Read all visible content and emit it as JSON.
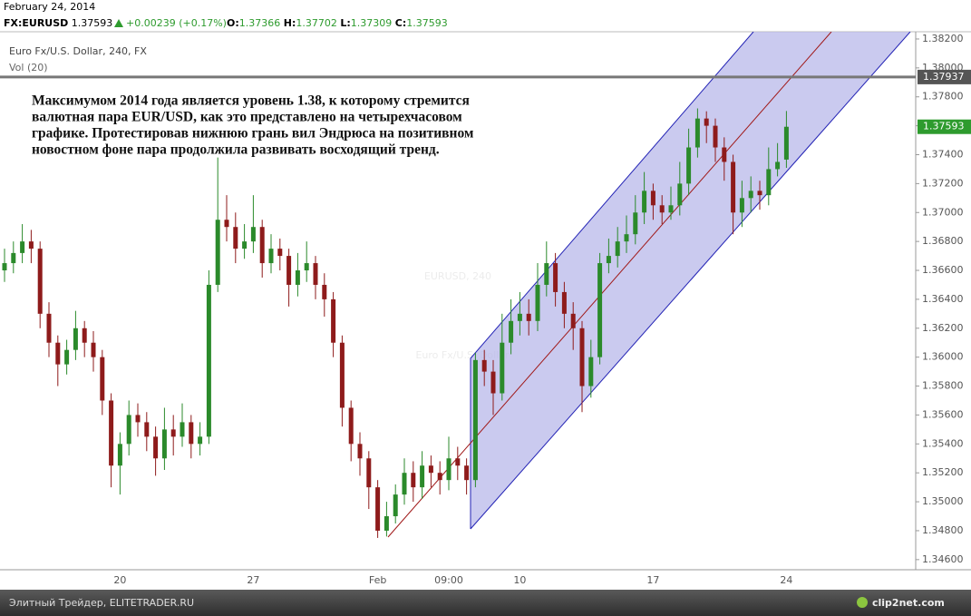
{
  "header": {
    "date": "February 24, 2014",
    "symbol": "FX:EURUSD",
    "last": "1.37593",
    "change": "+0.00239 (+0.17%)",
    "ohlc": [
      {
        "key": "O:",
        "text": "1.37366"
      },
      {
        "key": "H:",
        "text": "1.37702"
      },
      {
        "key": "L:",
        "text": "1.37309"
      },
      {
        "key": "C:",
        "text": "1.37593"
      }
    ]
  },
  "chart_data": {
    "type": "candlestick",
    "title": "Euro Fx/U.S. Dollar, 240, FX",
    "subtitle": "Vol (20)",
    "watermark": [
      "EURUSD, 240",
      "Euro Fx/U.S. Dollar"
    ],
    "annotation": [
      "Максимумом 2014 года является уровень 1.38, к которому стремится",
      "валютная пара EUR/USD, как это представлено на четырехчасовом",
      "графике. Протестировав нижнюю грань вил Эндрюса на позитивном",
      "новостном фоне пара продолжила развивать восходящий тренд."
    ],
    "up_color": "#2b8a2b",
    "down_color": "#8e1b1b",
    "ylim": [
      1.3453,
      1.3825
    ],
    "yticks": [
      {
        "value": 1.382,
        "label": "1.38200"
      },
      {
        "value": 1.38,
        "label": "1.38000"
      },
      {
        "value": 1.378,
        "label": "1.37800"
      },
      {
        "value": 1.376,
        "label": "1.37600"
      },
      {
        "value": 1.374,
        "label": "1.37400"
      },
      {
        "value": 1.372,
        "label": "1.37200"
      },
      {
        "value": 1.37,
        "label": "1.37000"
      },
      {
        "value": 1.368,
        "label": "1.36800"
      },
      {
        "value": 1.366,
        "label": "1.36600"
      },
      {
        "value": 1.364,
        "label": "1.36400"
      },
      {
        "value": 1.362,
        "label": "1.36200"
      },
      {
        "value": 1.36,
        "label": "1.36000"
      },
      {
        "value": 1.358,
        "label": "1.35800"
      },
      {
        "value": 1.356,
        "label": "1.35600"
      },
      {
        "value": 1.354,
        "label": "1.35400"
      },
      {
        "value": 1.352,
        "label": "1.35200"
      },
      {
        "value": 1.35,
        "label": "1.35000"
      },
      {
        "value": 1.348,
        "label": "1.34800"
      },
      {
        "value": 1.346,
        "label": "1.34600"
      }
    ],
    "price_line": {
      "value": 1.37937,
      "label": "1.37937",
      "color": "#777777"
    },
    "last_price": {
      "value": 1.37593,
      "label": "1.37593",
      "color": "#2e9b2e"
    },
    "categories": [
      null,
      null,
      null,
      null,
      null,
      null,
      null,
      null,
      null,
      null,
      null,
      null,
      null,
      "20",
      null,
      null,
      null,
      null,
      null,
      null,
      null,
      null,
      null,
      null,
      null,
      null,
      null,
      null,
      "27",
      null,
      null,
      null,
      null,
      null,
      null,
      null,
      null,
      null,
      null,
      null,
      null,
      null,
      "Feb",
      null,
      null,
      null,
      null,
      null,
      null,
      null,
      "09:00",
      null,
      null,
      null,
      null,
      null,
      null,
      null,
      "10",
      null,
      null,
      null,
      null,
      null,
      null,
      null,
      null,
      null,
      null,
      null,
      null,
      null,
      null,
      "17",
      null,
      null,
      null,
      null,
      null,
      null,
      null,
      null,
      null,
      null,
      null,
      null,
      null,
      null,
      "24"
    ],
    "open": [
      1.366,
      1.3665,
      1.3672,
      1.368,
      1.3675,
      1.363,
      1.361,
      1.3595,
      1.3605,
      1.362,
      1.361,
      1.36,
      1.357,
      1.3525,
      1.354,
      1.356,
      1.3555,
      1.3545,
      1.353,
      1.355,
      1.3545,
      1.3555,
      1.354,
      1.3545,
      1.365,
      1.3695,
      1.369,
      1.3675,
      1.368,
      1.369,
      1.3665,
      1.3675,
      1.367,
      1.365,
      1.366,
      1.3665,
      1.365,
      1.364,
      1.361,
      1.3565,
      1.354,
      1.353,
      1.351,
      1.348,
      1.349,
      1.3505,
      1.352,
      1.351,
      1.3525,
      1.352,
      1.3515,
      1.353,
      1.3525,
      1.3515,
      1.3598,
      1.359,
      1.3575,
      1.361,
      1.3625,
      1.363,
      1.3625,
      1.365,
      1.3665,
      1.3645,
      1.363,
      1.362,
      1.358,
      1.36,
      1.3665,
      1.367,
      1.368,
      1.3685,
      1.37,
      1.3715,
      1.3705,
      1.37,
      1.3705,
      1.372,
      1.3745,
      1.3765,
      1.376,
      1.3745,
      1.3735,
      1.37,
      1.371,
      1.3715,
      1.3712,
      1.373,
      1.37366
    ],
    "high": [
      1.3675,
      1.368,
      1.3692,
      1.3688,
      1.368,
      1.3638,
      1.3615,
      1.3612,
      1.3632,
      1.3625,
      1.3618,
      1.3605,
      1.3575,
      1.3548,
      1.357,
      1.3568,
      1.3562,
      1.3552,
      1.3565,
      1.356,
      1.3568,
      1.356,
      1.3555,
      1.366,
      1.3738,
      1.3712,
      1.37,
      1.3692,
      1.3712,
      1.3695,
      1.3685,
      1.3682,
      1.3675,
      1.3672,
      1.368,
      1.367,
      1.3658,
      1.3645,
      1.3615,
      1.357,
      1.3548,
      1.3535,
      1.3515,
      1.35,
      1.3512,
      1.353,
      1.3528,
      1.3535,
      1.3532,
      1.3528,
      1.3545,
      1.3538,
      1.353,
      1.3603,
      1.3605,
      1.3598,
      1.363,
      1.364,
      1.3645,
      1.364,
      1.3665,
      1.368,
      1.3672,
      1.3652,
      1.3638,
      1.3625,
      1.3612,
      1.3672,
      1.3682,
      1.369,
      1.3698,
      1.3712,
      1.3728,
      1.372,
      1.3712,
      1.3718,
      1.3735,
      1.3758,
      1.3772,
      1.377,
      1.3765,
      1.3752,
      1.374,
      1.3722,
      1.3725,
      1.3722,
      1.3745,
      1.3748,
      1.37702
    ],
    "low": [
      1.3652,
      1.3658,
      1.3665,
      1.3665,
      1.362,
      1.36,
      1.358,
      1.3588,
      1.3598,
      1.36,
      1.359,
      1.356,
      1.351,
      1.3505,
      1.3532,
      1.3545,
      1.3535,
      1.3518,
      1.3522,
      1.3532,
      1.3538,
      1.353,
      1.3532,
      1.354,
      1.3645,
      1.368,
      1.3665,
      1.3668,
      1.3672,
      1.3655,
      1.3658,
      1.366,
      1.3635,
      1.3642,
      1.3652,
      1.364,
      1.3628,
      1.36,
      1.3552,
      1.3528,
      1.3518,
      1.3495,
      1.3475,
      1.3476,
      1.3485,
      1.3498,
      1.35,
      1.3502,
      1.351,
      1.3505,
      1.3508,
      1.3515,
      1.3505,
      1.351,
      1.358,
      1.356,
      1.357,
      1.3602,
      1.3615,
      1.3615,
      1.3618,
      1.3642,
      1.3635,
      1.362,
      1.3605,
      1.3562,
      1.3572,
      1.3595,
      1.3658,
      1.3662,
      1.3672,
      1.3678,
      1.3692,
      1.3695,
      1.3692,
      1.3695,
      1.3698,
      1.3712,
      1.3738,
      1.3748,
      1.3735,
      1.3722,
      1.3685,
      1.369,
      1.37,
      1.3702,
      1.3705,
      1.3725,
      1.37309
    ],
    "close": [
      1.3665,
      1.3672,
      1.368,
      1.3675,
      1.363,
      1.361,
      1.3595,
      1.3605,
      1.362,
      1.361,
      1.36,
      1.357,
      1.3525,
      1.354,
      1.356,
      1.3555,
      1.3545,
      1.353,
      1.355,
      1.3545,
      1.3555,
      1.354,
      1.3545,
      1.365,
      1.3695,
      1.369,
      1.3675,
      1.368,
      1.369,
      1.3665,
      1.3675,
      1.367,
      1.365,
      1.366,
      1.3665,
      1.365,
      1.364,
      1.361,
      1.3565,
      1.354,
      1.353,
      1.351,
      1.348,
      1.349,
      1.3505,
      1.352,
      1.351,
      1.3525,
      1.352,
      1.3515,
      1.353,
      1.3525,
      1.3515,
      1.3598,
      1.359,
      1.3575,
      1.361,
      1.3625,
      1.363,
      1.3625,
      1.365,
      1.3665,
      1.3645,
      1.363,
      1.362,
      1.358,
      1.36,
      1.3665,
      1.367,
      1.368,
      1.3685,
      1.37,
      1.3715,
      1.3705,
      1.37,
      1.3705,
      1.372,
      1.3745,
      1.3765,
      1.376,
      1.3745,
      1.3735,
      1.37,
      1.371,
      1.3715,
      1.3712,
      1.373,
      1.3735,
      1.37593
    ]
  },
  "footer": {
    "left": "Элитный Трейдер, ELITETRADER.RU",
    "brand": "clip2net.com"
  }
}
